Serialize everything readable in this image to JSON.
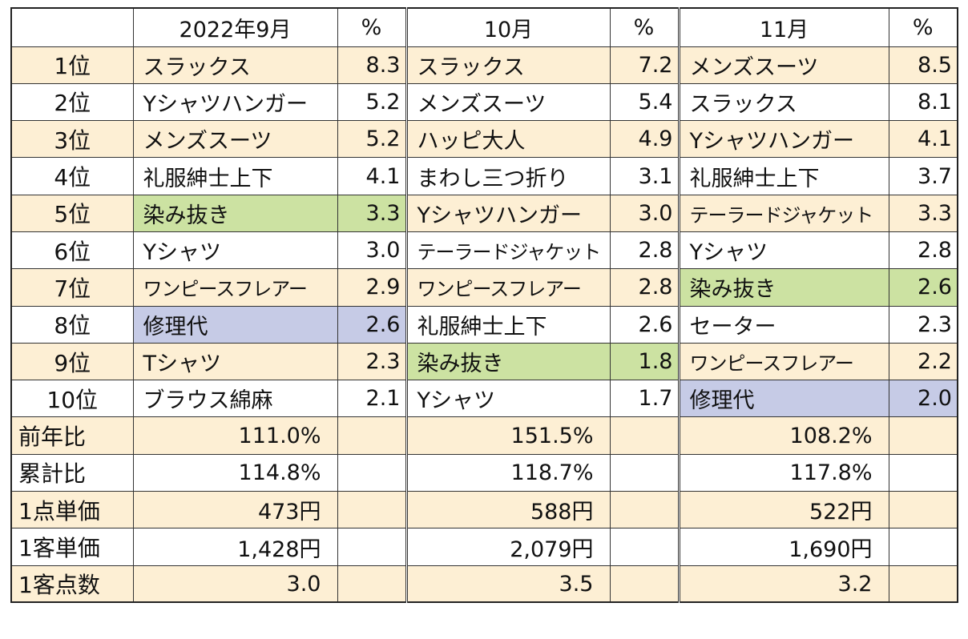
{
  "header": {
    "corner": "",
    "months": [
      "2022年9月",
      "10月",
      "11月"
    ],
    "pct_label": "%"
  },
  "ranking": [
    {
      "rank": "1位",
      "cols": [
        {
          "name": "スラックス",
          "pct": "8.3"
        },
        {
          "name": "スラックス",
          "pct": "7.2"
        },
        {
          "name": "メンズスーツ",
          "pct": "8.5"
        }
      ]
    },
    {
      "rank": "2位",
      "cols": [
        {
          "name": "Yシャツハンガー",
          "pct": "5.2"
        },
        {
          "name": "メンズスーツ",
          "pct": "5.4"
        },
        {
          "name": "スラックス",
          "pct": "8.1"
        }
      ]
    },
    {
      "rank": "3位",
      "cols": [
        {
          "name": "メンズスーツ",
          "pct": "5.2"
        },
        {
          "name": "ハッピ大人",
          "pct": "4.9"
        },
        {
          "name": "Yシャツハンガー",
          "pct": "4.1"
        }
      ]
    },
    {
      "rank": "4位",
      "cols": [
        {
          "name": "礼服紳士上下",
          "pct": "4.1"
        },
        {
          "name": "まわし三つ折り",
          "pct": "3.1"
        },
        {
          "name": "礼服紳士上下",
          "pct": "3.7"
        }
      ]
    },
    {
      "rank": "5位",
      "cols": [
        {
          "name": "染み抜き",
          "pct": "3.3"
        },
        {
          "name": "Yシャツハンガー",
          "pct": "3.0"
        },
        {
          "name": "テーラードジャケット",
          "pct": "3.3"
        }
      ]
    },
    {
      "rank": "6位",
      "cols": [
        {
          "name": "Yシャツ",
          "pct": "3.0"
        },
        {
          "name": "テーラードジャケット",
          "pct": "2.8"
        },
        {
          "name": "Yシャツ",
          "pct": "2.8"
        }
      ]
    },
    {
      "rank": "7位",
      "cols": [
        {
          "name": "ワンピースフレアー",
          "pct": "2.9"
        },
        {
          "name": "ワンピースフレアー",
          "pct": "2.8"
        },
        {
          "name": "染み抜き",
          "pct": "2.6"
        }
      ]
    },
    {
      "rank": "8位",
      "cols": [
        {
          "name": "修理代",
          "pct": "2.6"
        },
        {
          "name": "礼服紳士上下",
          "pct": "2.6"
        },
        {
          "name": "セーター",
          "pct": "2.3"
        }
      ]
    },
    {
      "rank": "9位",
      "cols": [
        {
          "name": "Tシャツ",
          "pct": "2.3"
        },
        {
          "name": "染み抜き",
          "pct": "1.8"
        },
        {
          "name": "ワンピースフレアー",
          "pct": "2.2"
        }
      ]
    },
    {
      "rank": "10位",
      "cols": [
        {
          "name": "ブラウス綿麻",
          "pct": "2.1"
        },
        {
          "name": "Yシャツ",
          "pct": "1.7"
        },
        {
          "name": "修理代",
          "pct": "2.0"
        }
      ]
    }
  ],
  "summary": [
    {
      "label": "前年比",
      "values": [
        "111.0%",
        "151.5%",
        "108.2%"
      ]
    },
    {
      "label": "累計比",
      "values": [
        "114.8%",
        "118.7%",
        "117.8%"
      ]
    },
    {
      "label": "1点単価",
      "values": [
        "473円",
        "588円",
        "522円"
      ]
    },
    {
      "label": "1客単価",
      "values": [
        "1,428円",
        "2,079円",
        "1,690円"
      ]
    },
    {
      "label": "1客点数",
      "values": [
        "3.0",
        "3.5",
        "3.2"
      ]
    }
  ],
  "colors": {
    "row_highlight": "#fdefd4",
    "green_highlight": "#cce2a2",
    "blue_highlight": "#c6cbe6",
    "border": "#333333"
  }
}
